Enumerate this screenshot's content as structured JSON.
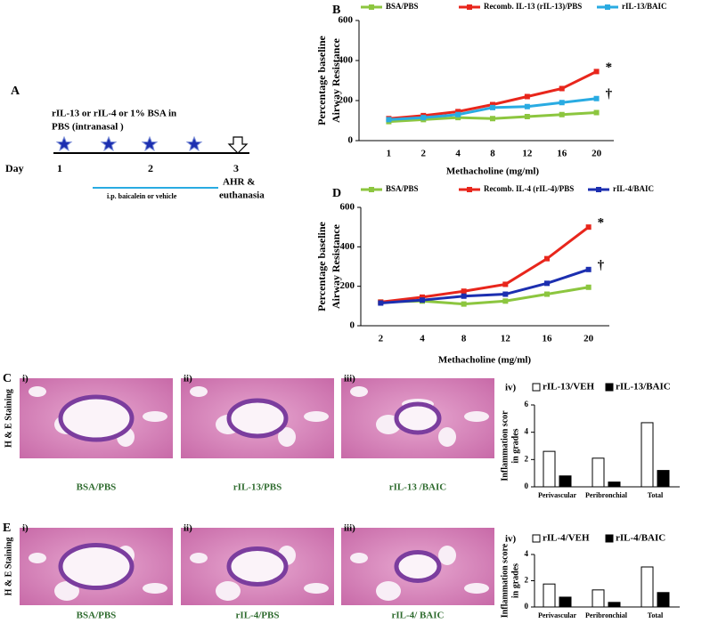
{
  "chart_data": [
    {
      "type": "line",
      "panel": "B",
      "categories": [
        "1",
        "2",
        "4",
        "8",
        "12",
        "16",
        "20"
      ],
      "xlabel": "Methacholine (mg/ml)",
      "ylabel": [
        "Percentage baseline",
        "Airway Resistance"
      ],
      "ylim": [
        0,
        600
      ],
      "yticks": [
        0,
        200,
        400,
        600
      ],
      "series": [
        {
          "name": "BSA/PBS",
          "color": "#8cc63f",
          "values": [
            95,
            105,
            115,
            110,
            120,
            130,
            140
          ]
        },
        {
          "name": "Recomb. IL-13 (rIL-13)/PBS",
          "color": "#e8261c",
          "values": [
            110,
            125,
            145,
            180,
            220,
            260,
            345
          ]
        },
        {
          "name": "rIL-13/BAIC",
          "color": "#29abe2",
          "values": [
            105,
            115,
            130,
            165,
            170,
            190,
            210
          ]
        }
      ],
      "annotations": [
        "*",
        "†"
      ]
    },
    {
      "type": "line",
      "panel": "D",
      "categories": [
        "2",
        "4",
        "8",
        "12",
        "16",
        "20"
      ],
      "xlabel": "Methacholine (mg/ml)",
      "ylabel": [
        "Percentage baseline",
        "Airway Resistance"
      ],
      "ylim": [
        0,
        600
      ],
      "yticks": [
        0,
        200,
        400,
        600
      ],
      "series": [
        {
          "name": "BSA/PBS",
          "color": "#8cc63f",
          "values": [
            120,
            125,
            110,
            125,
            160,
            195
          ]
        },
        {
          "name": "Recomb. IL-4 (rIL-4)/PBS",
          "color": "#e8261c",
          "values": [
            120,
            145,
            175,
            210,
            340,
            500
          ]
        },
        {
          "name": "rIL-4/BAIC",
          "color": "#1c2fb0",
          "values": [
            115,
            130,
            150,
            160,
            215,
            285
          ]
        }
      ],
      "annotations": [
        "*",
        "†"
      ]
    },
    {
      "type": "bar",
      "panel": "iv)",
      "categories": [
        "Perivascular",
        "Peribronchial",
        "Total"
      ],
      "ylabel": [
        "Inflammation scor",
        "in grades"
      ],
      "ylim": [
        0,
        6
      ],
      "yticks": [
        0,
        2,
        4,
        6
      ],
      "series": [
        {
          "name": "rIL-13/VEH",
          "color": "#ffffff",
          "values": [
            2.6,
            2.1,
            4.7
          ]
        },
        {
          "name": "rIL-13/BAIC",
          "color": "#000000",
          "values": [
            0.8,
            0.35,
            1.2
          ]
        }
      ]
    },
    {
      "type": "bar",
      "panel": "iv)",
      "categories": [
        "Perivascular",
        "Peribronchial",
        "Total"
      ],
      "ylabel": [
        "Inflammation score",
        "in grades"
      ],
      "ylim": [
        0,
        4
      ],
      "yticks": [
        0,
        2,
        4
      ],
      "series": [
        {
          "name": "rIL-4/VEH",
          "color": "#ffffff",
          "values": [
            1.75,
            1.3,
            3.05
          ]
        },
        {
          "name": "rIL-4/BAIC",
          "color": "#000000",
          "values": [
            0.75,
            0.35,
            1.1
          ]
        }
      ]
    }
  ],
  "panel_a": {
    "label": "A",
    "treatment": [
      "rIL-13 or rIL-4 or 1% BSA in",
      "PBS (intranasal )"
    ],
    "day": "Day",
    "days": [
      "1",
      "2",
      "3"
    ],
    "endpoint": [
      "AHR &",
      "euthanasia"
    ],
    "ip": "i.p. baicalein or vehicle"
  },
  "histology": {
    "rows": [
      {
        "label": "C",
        "side": "H & E Staining",
        "images": [
          "i)",
          "ii)",
          "iii)"
        ],
        "captions": [
          "BSA/PBS",
          "rIL-13/PBS",
          "rIL-13 /BAIC"
        ]
      },
      {
        "label": "E",
        "side": "H & E Staining",
        "images": [
          "i)",
          "ii)",
          "iii)"
        ],
        "captions": [
          "BSA/PBS",
          "rIL-4/PBS",
          "rIL-4/ BAIC"
        ]
      }
    ]
  }
}
